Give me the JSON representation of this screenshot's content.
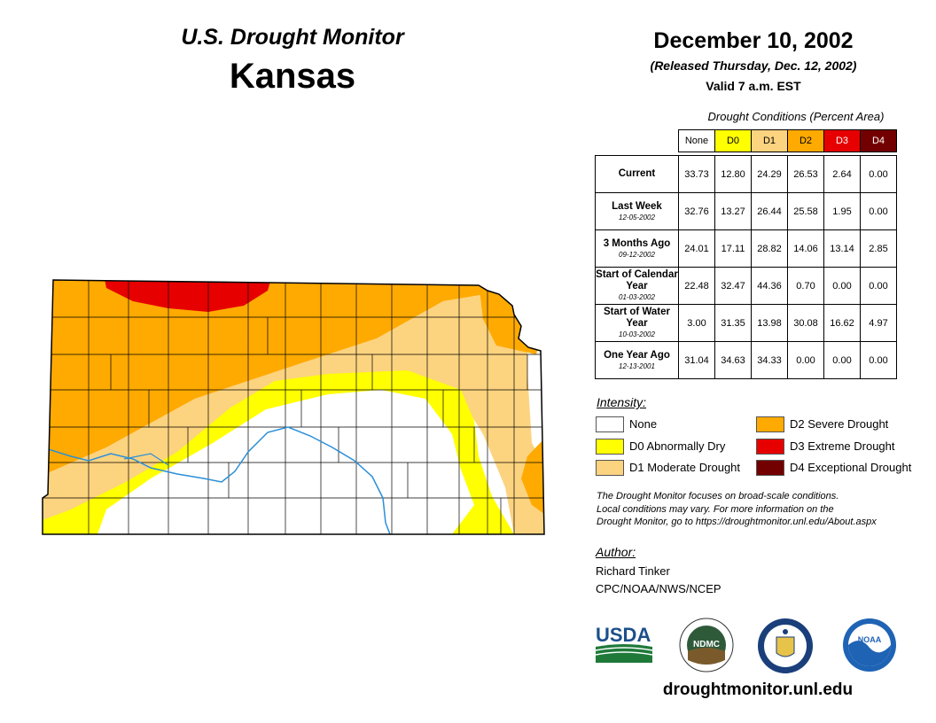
{
  "header": {
    "monitor": "U.S. Drought Monitor",
    "state": "Kansas",
    "date": "December 10, 2002",
    "released": "(Released Thursday, Dec. 12, 2002)",
    "valid": "Valid 7 a.m. EST"
  },
  "table": {
    "caption": "Drought Conditions (Percent Area)",
    "columns": [
      "None",
      "D0",
      "D1",
      "D2",
      "D3",
      "D4"
    ],
    "column_colors": [
      "#ffffff",
      "#ffff00",
      "#fcd37f",
      "#ffaa00",
      "#e60000",
      "#730000"
    ],
    "rows": [
      {
        "label": "Current",
        "date": "",
        "values": [
          "33.73",
          "12.80",
          "24.29",
          "26.53",
          "2.64",
          "0.00"
        ]
      },
      {
        "label": "Last Week",
        "date": "12-05-2002",
        "values": [
          "32.76",
          "13.27",
          "26.44",
          "25.58",
          "1.95",
          "0.00"
        ]
      },
      {
        "label": "3 Months Ago",
        "date": "09-12-2002",
        "values": [
          "24.01",
          "17.11",
          "28.82",
          "14.06",
          "13.14",
          "2.85"
        ]
      },
      {
        "label": "Start of Calendar Year",
        "date": "01-03-2002",
        "values": [
          "22.48",
          "32.47",
          "44.36",
          "0.70",
          "0.00",
          "0.00"
        ]
      },
      {
        "label": "Start of Water Year",
        "date": "10-03-2002",
        "values": [
          "3.00",
          "31.35",
          "13.98",
          "30.08",
          "16.62",
          "4.97"
        ]
      },
      {
        "label": "One Year Ago",
        "date": "12-13-2001",
        "values": [
          "31.04",
          "34.63",
          "34.33",
          "0.00",
          "0.00",
          "0.00"
        ]
      }
    ]
  },
  "legend": {
    "title": "Intensity:",
    "items": [
      {
        "label": "None",
        "color": "#ffffff"
      },
      {
        "label": "D0 Abnormally Dry",
        "color": "#ffff00"
      },
      {
        "label": "D1 Moderate Drought",
        "color": "#fcd37f"
      },
      {
        "label": "D2 Severe Drought",
        "color": "#ffaa00"
      },
      {
        "label": "D3 Extreme Drought",
        "color": "#e60000"
      },
      {
        "label": "D4 Exceptional Drought",
        "color": "#730000"
      }
    ]
  },
  "note": {
    "line1": "The Drought Monitor focuses on broad-scale conditions.",
    "line2": "Local conditions may vary. For more information on the",
    "line3": "Drought Monitor, go to https://droughtmonitor.unl.edu/About.aspx"
  },
  "author": {
    "title": "Author:",
    "name": "Richard Tinker",
    "org": "CPC/NOAA/NWS/NCEP"
  },
  "logos": {
    "usda": "USDA",
    "ndmc": "NDMC",
    "noaa": "NOAA"
  },
  "footer": {
    "url": "droughtmonitor.unl.edu"
  },
  "colors": {
    "none": "#ffffff",
    "d0": "#ffff00",
    "d1": "#fcd37f",
    "d2": "#ffaa00",
    "d3": "#e60000",
    "river": "#2b8fd8"
  }
}
